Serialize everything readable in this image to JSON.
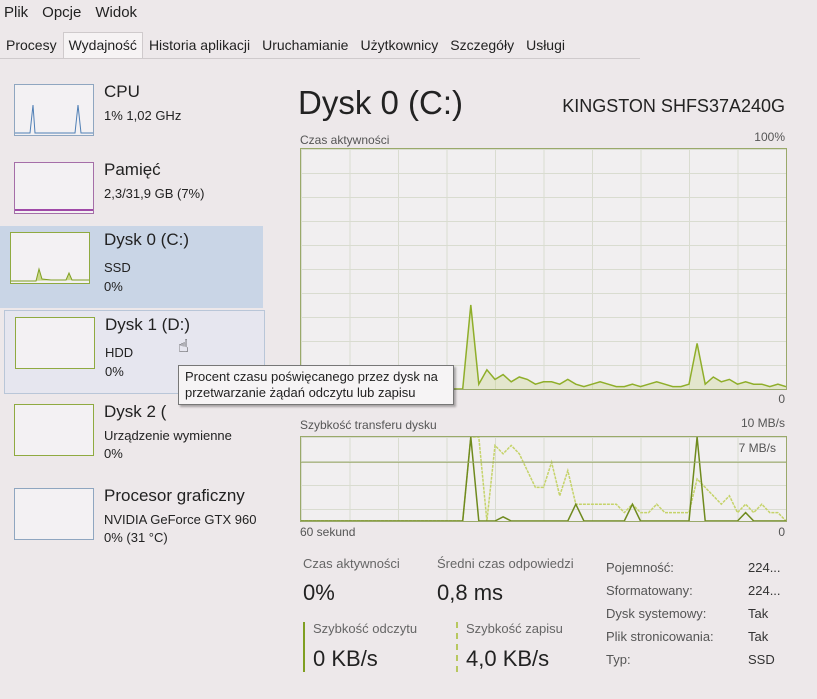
{
  "menu": [
    "Plik",
    "Opcje",
    "Widok"
  ],
  "tabs": [
    {
      "label": "Procesy"
    },
    {
      "label": "Wydajność",
      "active": true
    },
    {
      "label": "Historia aplikacji"
    },
    {
      "label": "Uruchamianie"
    },
    {
      "label": "Użytkownicy"
    },
    {
      "label": "Szczegóły"
    },
    {
      "label": "Usługi"
    }
  ],
  "sidebar": [
    {
      "title": "CPU",
      "line1": "1% 1,02 GHz"
    },
    {
      "title": "Pamięć",
      "line1": "2,3/31,9 GB (7%)"
    },
    {
      "title": "Dysk 0 (C:)",
      "line1": "SSD",
      "line2": "0%"
    },
    {
      "title": "Dysk 1 (D:)",
      "line1": "HDD",
      "line2": "0%"
    },
    {
      "title": "Dysk 2 (",
      "line1": "Urządzenie wymienne",
      "line2": "0%"
    },
    {
      "title": "Procesor graficzny",
      "line1": "NVIDIA GeForce GTX 960",
      "line2": "0% (31 °C)"
    }
  ],
  "tooltip": "Procent czasu poświęcanego przez dysk na przetwarzanie żądań odczytu lub zapisu",
  "main": {
    "title": "Dysk 0 (C:)",
    "model": "KINGSTON SHFS37A240G",
    "activity_label": "Czas aktywności",
    "activity_max": "100%",
    "activity_min": "0",
    "transfer_label": "Szybkość transferu dysku",
    "transfer_max": "10 MB/s",
    "transfer_mark": "7 MB/s",
    "transfer_min": "0",
    "time_label": "60 sekund",
    "stats": {
      "active_label": "Czas aktywności",
      "active_value": "0%",
      "resp_label": "Średni czas odpowiedzi",
      "resp_value": "0,8 ms",
      "read_label": "Szybkość odczytu",
      "read_value": "0 KB/s",
      "write_label": "Szybkość zapisu",
      "write_value": "4,0 KB/s"
    },
    "props": [
      [
        "Pojemność:",
        "224..."
      ],
      [
        "Sformatowany:",
        "224..."
      ],
      [
        "Dysk systemowy:",
        "Tak"
      ],
      [
        "Plik stronicowania:",
        "Tak"
      ],
      [
        "Typ:",
        "SSD"
      ]
    ]
  },
  "colors": {
    "line": "#8fae2a",
    "read": "#6f8a1e",
    "write": "#c5d36a",
    "selected": "#c9d5e6"
  },
  "chart_data": {
    "type": "line",
    "activity_percent": [
      0,
      0,
      0,
      0,
      0,
      0,
      0,
      0,
      0,
      0,
      0,
      0,
      0,
      0,
      0,
      0,
      0,
      0,
      0,
      0,
      0,
      35,
      2,
      8,
      4,
      6,
      3,
      5,
      4,
      2,
      3,
      3,
      2,
      4,
      2,
      1,
      2,
      3,
      2,
      1,
      1,
      2,
      1,
      2,
      3,
      2,
      1,
      1,
      2,
      19,
      2,
      5,
      3,
      4,
      2,
      3,
      2,
      2,
      1,
      2,
      1
    ],
    "write_mbps": [
      0,
      0,
      0,
      0,
      0,
      0,
      0,
      0,
      0,
      0,
      0,
      0,
      0,
      0,
      0,
      0,
      0,
      0,
      0,
      0,
      0,
      10,
      10,
      0,
      9,
      8,
      9,
      8,
      6,
      4,
      4,
      7,
      3,
      6,
      2,
      2,
      2,
      2,
      2,
      2,
      1,
      2,
      1,
      1,
      2,
      1,
      1,
      1,
      1,
      5,
      4,
      3,
      2,
      3,
      1,
      2,
      1,
      2,
      1,
      1,
      0
    ],
    "read_mbps": [
      0,
      0,
      0,
      0,
      0,
      0,
      0,
      0,
      0,
      0,
      0,
      0,
      0,
      0,
      0,
      0,
      0,
      0,
      0,
      0,
      0,
      10,
      0,
      0,
      0,
      0.5,
      0,
      0,
      0,
      0,
      0,
      0,
      0,
      0,
      2,
      0,
      0,
      0,
      0,
      0,
      0,
      2,
      0,
      0,
      0,
      0,
      0,
      0,
      0,
      10,
      0,
      0,
      0,
      0,
      0,
      1,
      0,
      0,
      0,
      0,
      0
    ],
    "xlim": [
      60,
      0
    ],
    "ylim_activity": [
      0,
      100
    ],
    "ylim_transfer": [
      0,
      10
    ]
  }
}
